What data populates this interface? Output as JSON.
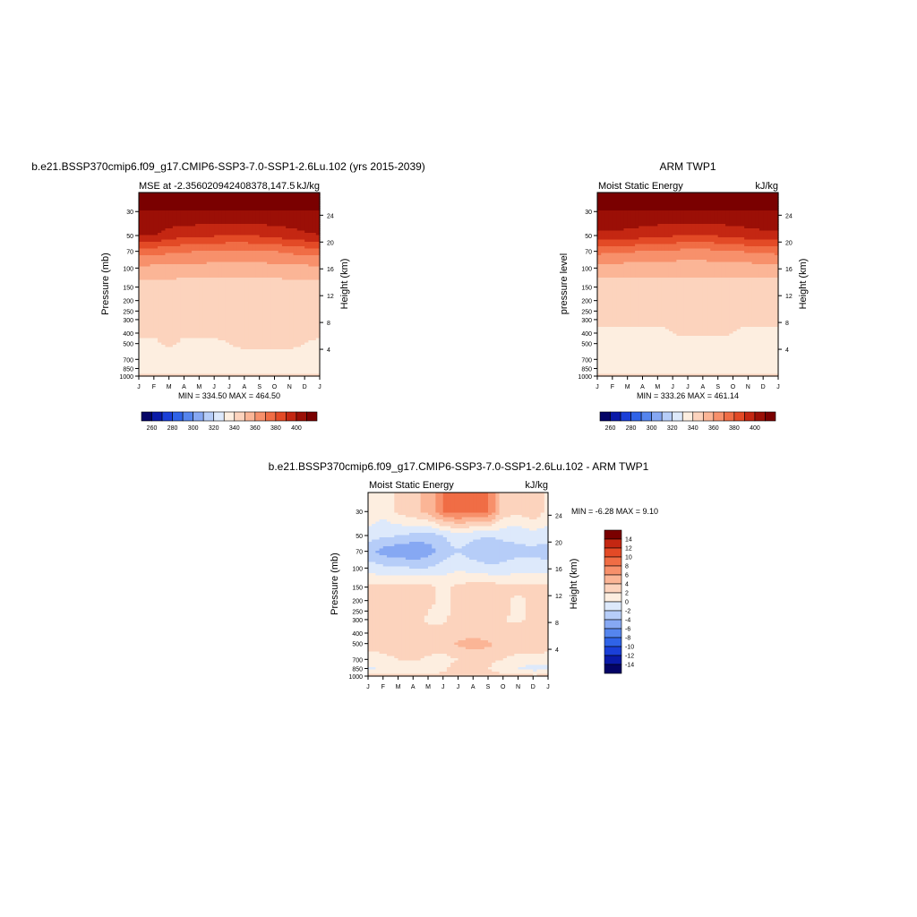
{
  "colors": {
    "mse_levels": [
      260,
      270,
      280,
      290,
      300,
      310,
      320,
      330,
      340,
      350,
      360,
      370,
      380,
      390,
      400,
      410
    ],
    "mse_palette": [
      "#040466",
      "#0a1aa8",
      "#1a3fd8",
      "#2f63e8",
      "#5585ee",
      "#86a8f3",
      "#b6cdf8",
      "#dde9fb",
      "#fdeee0",
      "#fcd3bd",
      "#fbb596",
      "#f7906b",
      "#f06d45",
      "#e34a26",
      "#c42712",
      "#9b0f06",
      "#7a0000"
    ],
    "diff_levels": [
      -14,
      -12,
      -10,
      -8,
      -6,
      -4,
      -2,
      0,
      2,
      4,
      6,
      8,
      10,
      12,
      14
    ],
    "diff_palette": [
      "#040466",
      "#0a1aa8",
      "#1a3fd8",
      "#2f63e8",
      "#5585ee",
      "#86a8f3",
      "#b6cdf8",
      "#dde9fb",
      "#fdeee0",
      "#fcd3bd",
      "#fbb596",
      "#f7906b",
      "#f06d45",
      "#e34a26",
      "#c42712",
      "#7a0000"
    ]
  },
  "chart_data": [
    {
      "type": "heatmap",
      "title": "b.e21.BSSP370cmip6.f09_g17.CMIP6-SSP3-7.0-SSP1-2.6Lu.102 (yrs 2015-2039)",
      "left_subtitle": "MSE at -2.356020942408378,147.5",
      "right_subtitle": "kJ/kg",
      "ylabel": "Pressure (mb)",
      "ylabel_right": "Height (km)",
      "x_ticklabels": [
        "J",
        "F",
        "M",
        "A",
        "M",
        "J",
        "J",
        "A",
        "S",
        "O",
        "N",
        "D",
        "J"
      ],
      "y_levels": [
        30,
        50,
        70,
        100,
        150,
        200,
        250,
        300,
        400,
        500,
        700,
        850,
        1000
      ],
      "y_ticklabels": [
        "30",
        "50",
        "70",
        "100",
        "150",
        "200",
        "250",
        "300",
        "400",
        "500",
        "700",
        "850",
        "1000"
      ],
      "height_ticklabels": [
        "4",
        "8",
        "12",
        "16",
        "20",
        "24"
      ],
      "min_max_text": "MIN = 334.50 MAX = 464.50",
      "colorbar_labels": [
        "260",
        "280",
        "300",
        "320",
        "340",
        "360",
        "380",
        "400"
      ],
      "x_months": [
        0,
        1,
        2,
        3,
        4,
        5,
        6,
        7,
        8,
        9,
        10,
        11,
        12
      ],
      "values": [
        [
          410,
          410,
          410,
          410,
          410,
          410,
          410,
          410,
          410,
          410,
          410,
          410,
          410
        ],
        [
          400,
          400,
          395,
          393,
          392,
          391,
          390,
          390,
          391,
          393,
          395,
          398,
          400
        ],
        [
          375,
          374,
          372,
          371,
          370,
          369,
          368,
          368,
          369,
          370,
          372,
          374,
          375
        ],
        [
          358,
          357,
          357,
          356,
          356,
          356,
          355,
          355,
          356,
          356,
          357,
          357,
          358
        ],
        [
          345,
          345,
          345,
          345,
          345,
          345,
          345,
          345,
          345,
          345,
          345,
          345,
          345
        ],
        [
          343,
          343,
          343,
          343,
          343,
          343,
          343,
          343,
          343,
          343,
          343,
          343,
          343
        ],
        [
          342,
          342,
          342,
          342,
          342,
          342,
          342,
          342,
          342,
          342,
          342,
          342,
          342
        ],
        [
          341,
          341,
          341,
          341,
          341,
          341,
          341,
          341,
          341,
          341,
          341,
          341,
          341
        ],
        [
          341,
          341,
          341,
          341,
          341,
          341,
          341,
          341,
          341,
          341,
          341,
          341,
          341
        ],
        [
          339,
          339,
          341,
          339,
          339,
          339,
          340,
          341,
          341,
          341,
          341,
          340,
          339
        ],
        [
          338,
          338,
          338,
          338,
          338,
          338,
          338,
          338,
          338,
          338,
          338,
          338,
          338
        ],
        [
          337,
          337,
          337,
          337,
          337,
          337,
          337,
          337,
          337,
          337,
          337,
          337,
          337
        ],
        [
          342,
          342,
          342,
          342,
          342,
          342,
          342,
          342,
          342,
          342,
          342,
          342,
          342
        ]
      ]
    },
    {
      "type": "heatmap",
      "title": "ARM TWP1",
      "left_subtitle": "Moist Static Energy",
      "right_subtitle": "kJ/kg",
      "ylabel": "pressure level",
      "ylabel_right": "Height (km)",
      "x_ticklabels": [
        "J",
        "F",
        "M",
        "A",
        "M",
        "J",
        "J",
        "A",
        "S",
        "O",
        "N",
        "D",
        "J"
      ],
      "y_levels": [
        30,
        50,
        70,
        100,
        150,
        200,
        250,
        300,
        400,
        500,
        700,
        850,
        1000
      ],
      "y_ticklabels": [
        "30",
        "50",
        "70",
        "100",
        "150",
        "200",
        "250",
        "300",
        "400",
        "500",
        "700",
        "850",
        "1000"
      ],
      "height_ticklabels": [
        "4",
        "8",
        "12",
        "16",
        "20",
        "24"
      ],
      "min_max_text": "MIN = 333.26 MAX = 461.14",
      "colorbar_labels": [
        "260",
        "280",
        "300",
        "320",
        "340",
        "360",
        "380",
        "400"
      ],
      "x_months": [
        0,
        1,
        2,
        3,
        4,
        5,
        6,
        7,
        8,
        9,
        10,
        11,
        12
      ],
      "values": [
        [
          410,
          410,
          410,
          410,
          410,
          410,
          410,
          410,
          410,
          410,
          410,
          410,
          410
        ],
        [
          398,
          398,
          396,
          394,
          392,
          391,
          390,
          390,
          391,
          393,
          395,
          397,
          398
        ],
        [
          373,
          372,
          371,
          370,
          369,
          368,
          367,
          367,
          368,
          369,
          371,
          372,
          373
        ],
        [
          356,
          356,
          355,
          355,
          355,
          354,
          354,
          354,
          355,
          355,
          355,
          356,
          356
        ],
        [
          345,
          345,
          345,
          345,
          345,
          345,
          345,
          345,
          345,
          345,
          345,
          345,
          345
        ],
        [
          343,
          343,
          343,
          343,
          343,
          343,
          343,
          343,
          343,
          343,
          343,
          343,
          343
        ],
        [
          342,
          342,
          342,
          342,
          342,
          342,
          342,
          342,
          342,
          342,
          342,
          342,
          342
        ],
        [
          341,
          341,
          341,
          341,
          341,
          341,
          341,
          341,
          341,
          341,
          341,
          341,
          341
        ],
        [
          339,
          339,
          339,
          339,
          339,
          340,
          341,
          341,
          341,
          340,
          339,
          339,
          339
        ],
        [
          338,
          338,
          338,
          338,
          338,
          338,
          338,
          338,
          338,
          338,
          338,
          338,
          338
        ],
        [
          337,
          337,
          337,
          337,
          337,
          337,
          337,
          337,
          337,
          337,
          337,
          337,
          337
        ],
        [
          337,
          337,
          337,
          337,
          337,
          337,
          337,
          337,
          337,
          337,
          337,
          337,
          337
        ],
        [
          342,
          342,
          342,
          342,
          342,
          342,
          342,
          342,
          342,
          342,
          342,
          342,
          342
        ]
      ]
    },
    {
      "type": "heatmap",
      "title": "b.e21.BSSP370cmip6.f09_g17.CMIP6-SSP3-7.0-SSP1-2.6Lu.102 - ARM TWP1",
      "left_subtitle": "Moist Static Energy",
      "right_subtitle": "kJ/kg",
      "ylabel": "Pressure (mb)",
      "ylabel_right": "Height (km)",
      "x_ticklabels": [
        "J",
        "F",
        "M",
        "A",
        "M",
        "J",
        "J",
        "A",
        "S",
        "O",
        "N",
        "D",
        "J"
      ],
      "y_levels": [
        30,
        50,
        70,
        100,
        150,
        200,
        250,
        300,
        400,
        500,
        700,
        850,
        1000
      ],
      "y_ticklabels": [
        "30",
        "50",
        "70",
        "100",
        "150",
        "200",
        "250",
        "300",
        "400",
        "500",
        "700",
        "850",
        "1000"
      ],
      "height_ticklabels": [
        "4",
        "8",
        "12",
        "16",
        "20",
        "24"
      ],
      "min_max_text": "MIN =  -6.28 MAX =   9.10",
      "colorbar_labels": [
        "14",
        "12",
        "10",
        "8",
        "6",
        "4",
        "2",
        "0",
        "-2",
        "-4",
        "-6",
        "-8",
        "-10",
        "-12",
        "-14"
      ],
      "x_months": [
        0,
        1,
        2,
        3,
        4,
        5,
        6,
        7,
        8,
        9,
        10,
        11,
        12
      ],
      "values": [
        [
          1.5,
          0.5,
          2.5,
          3.5,
          4.5,
          8,
          9,
          8,
          8.5,
          3,
          2.5,
          3.5,
          1.5
        ],
        [
          -1,
          -1.5,
          -2,
          -2.5,
          -3,
          -2,
          -1,
          -1.5,
          -2,
          -1.5,
          -1.5,
          -1,
          -1
        ],
        [
          -3,
          -5,
          -5.5,
          -6,
          -5,
          -3,
          -2,
          -3,
          -3.5,
          -3,
          -2.5,
          -2.5,
          -3
        ],
        [
          -1,
          -1.5,
          -1.5,
          -2,
          -2,
          -1,
          -0.5,
          -1,
          -1.5,
          -1.5,
          -1,
          -1,
          -1
        ],
        [
          2.5,
          2.5,
          2.8,
          2.8,
          2.5,
          1.5,
          2.5,
          3,
          3,
          2.8,
          2.5,
          2.5,
          2.5
        ],
        [
          2.5,
          2.6,
          3,
          3,
          2.5,
          1.5,
          2.5,
          3,
          3,
          2.5,
          1.5,
          2.5,
          2.5
        ],
        [
          2.5,
          2.6,
          3,
          3,
          2,
          1.5,
          2.5,
          3,
          3,
          2.5,
          1.5,
          2.5,
          2.5
        ],
        [
          2.2,
          2.4,
          2.6,
          2.6,
          1.8,
          1.8,
          2.8,
          2.8,
          2.8,
          2,
          1.8,
          2.2,
          2.2
        ],
        [
          2.2,
          2.5,
          2.6,
          2.7,
          2.5,
          2.4,
          2.8,
          3,
          2.8,
          2.5,
          2.5,
          2.4,
          2.2
        ],
        [
          2.5,
          2.6,
          2.8,
          3.5,
          2.6,
          2.8,
          4.5,
          5,
          4.5,
          3,
          3,
          3,
          2.5
        ],
        [
          1.5,
          1.6,
          2,
          2.2,
          1.8,
          1.5,
          2,
          2.5,
          2.5,
          2,
          1.5,
          1.5,
          1.5
        ],
        [
          -0.5,
          0.5,
          0.5,
          0.5,
          0.5,
          1.5,
          3,
          2.5,
          2,
          1,
          0,
          -1,
          -0.5
        ],
        [
          2.5,
          2.5,
          2.5,
          2.5,
          2.5,
          2.6,
          2.6,
          2.6,
          2.5,
          2.5,
          2.5,
          2.5,
          2.5
        ]
      ]
    }
  ]
}
